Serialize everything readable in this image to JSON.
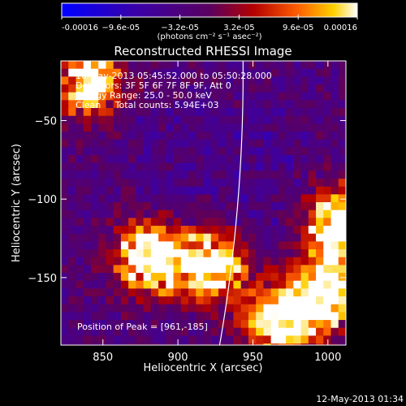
{
  "chart_data": {
    "type": "heatmap",
    "title": "Reconstructed RHESSI Image",
    "xlabel": "Heliocentric X (arcsec)",
    "ylabel": "Heliocentric Y (arcsec)",
    "xlim": [
      822,
      1012
    ],
    "ylim": [
      -193,
      -12
    ],
    "xticks": [
      850,
      900,
      950,
      1000
    ],
    "yticks": [
      -50,
      -100,
      -150
    ],
    "colorbar": {
      "min": -0.00016,
      "max": 0.00016,
      "tick_values": [
        -0.00016,
        -9.6e-05,
        -3.2e-05,
        3.2e-05,
        9.6e-05,
        0.00016
      ],
      "tick_labels": [
        "-0.00016",
        "−9.6e-05",
        "−3.2e-05",
        "3.2e-05",
        "9.6e-05",
        "0.00016"
      ],
      "unit_label": "(photons cm⁻² s⁻¹ asec⁻²)",
      "colormap": "rhessi-blue-purple-red-yellow-white"
    },
    "limb": true,
    "bright_sources": [
      {
        "x": 880,
        "y": -135,
        "level": 0.85
      },
      {
        "x": 920,
        "y": -140,
        "level": 0.75
      },
      {
        "x": 965,
        "y": -175,
        "level": 0.8
      },
      {
        "x": 995,
        "y": -160,
        "level": 0.8
      },
      {
        "x": 1005,
        "y": -115,
        "level": 0.9
      },
      {
        "x": 838,
        "y": -22,
        "level": 0.7
      }
    ],
    "info_lines": [
      "10-May-2013 05:45:52.000 to 05:50:28.000",
      "Detectors: 3F 5F 6F 7F 8F 9F, Att 0",
      "Energy Range: 25.0 - 50.0 keV",
      "Clean     Total counts: 5.94E+03"
    ],
    "peak_text": "Position of Peak = [961,-185]"
  },
  "footer": {
    "date": "12-May-2013 01:34"
  }
}
